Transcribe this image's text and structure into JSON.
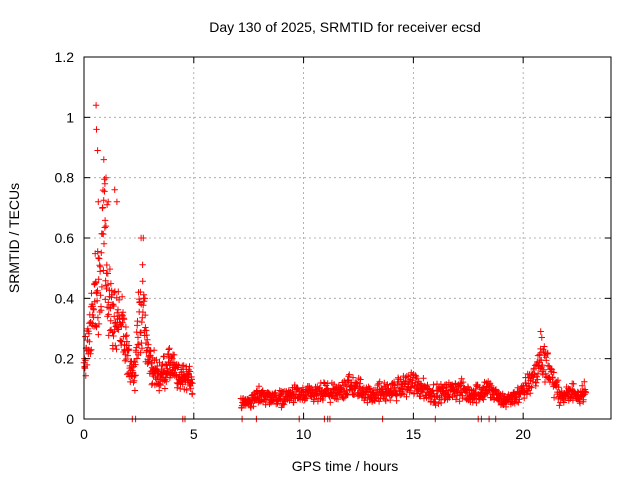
{
  "chart_data": {
    "type": "scatter",
    "title": "Day 130 of 2025, SRMTID for receiver ecsd",
    "xlabel": "GPS time / hours",
    "ylabel": "SRMTID / TECUs",
    "xlim": [
      0,
      24
    ],
    "ylim": [
      0,
      1.2
    ],
    "grid": true,
    "marker": "+",
    "color": "#ff0000",
    "xticks": [
      0,
      5,
      10,
      15,
      20
    ],
    "xtick_labels": [
      "0",
      "5",
      "10",
      "15",
      "20"
    ],
    "yticks": [
      0,
      0.2,
      0.4,
      0.6,
      0.8,
      1.0,
      1.2
    ],
    "ytick_labels": [
      "0",
      "0.2",
      "0.4",
      "0.6",
      "0.8",
      "1",
      "1.2"
    ],
    "envelope": {
      "hours": [
        0.0,
        0.3,
        0.5,
        0.7,
        0.9,
        1.1,
        1.3,
        1.5,
        1.7,
        2.0,
        2.3,
        2.5,
        2.7,
        2.9,
        3.1,
        3.4,
        3.7,
        4.0,
        4.3,
        4.6,
        4.9,
        7.2,
        7.6,
        8.0,
        8.5,
        9.0,
        9.5,
        10.0,
        10.5,
        11.0,
        11.5,
        12.0,
        12.5,
        13.0,
        13.5,
        14.0,
        14.5,
        15.0,
        15.5,
        16.0,
        16.5,
        17.0,
        17.5,
        18.0,
        18.5,
        19.0,
        19.5,
        20.0,
        20.5,
        20.8,
        21.0,
        21.3,
        21.5,
        21.8,
        22.0,
        22.3,
        22.6,
        22.8
      ],
      "srmtid": [
        0.17,
        0.3,
        0.42,
        0.45,
        0.62,
        0.42,
        0.33,
        0.35,
        0.3,
        0.2,
        0.15,
        0.33,
        0.38,
        0.22,
        0.17,
        0.14,
        0.16,
        0.18,
        0.13,
        0.15,
        0.12,
        0.05,
        0.06,
        0.08,
        0.07,
        0.07,
        0.08,
        0.08,
        0.08,
        0.09,
        0.08,
        0.11,
        0.1,
        0.08,
        0.09,
        0.09,
        0.11,
        0.12,
        0.1,
        0.08,
        0.09,
        0.1,
        0.08,
        0.09,
        0.1,
        0.06,
        0.07,
        0.09,
        0.14,
        0.19,
        0.2,
        0.14,
        0.1,
        0.07,
        0.08,
        0.09,
        0.08,
        0.1
      ]
    },
    "peaks": {
      "hours": [
        0.55,
        0.57,
        0.62,
        0.65,
        0.9,
        0.95,
        1.0,
        1.05,
        1.1,
        1.4,
        1.5,
        2.6,
        2.7,
        20.8,
        20.85
      ],
      "srmtid": [
        1.04,
        0.96,
        0.89,
        0.72,
        0.86,
        0.78,
        0.8,
        0.71,
        0.72,
        0.76,
        0.72,
        0.6,
        0.6,
        0.29,
        0.27
      ]
    },
    "zero_points_hours": [
      2.2,
      2.35,
      4.5,
      4.6,
      7.2,
      7.85,
      9.8,
      10.95,
      11.1,
      11.2,
      13.6,
      16.0,
      17.95,
      18.1,
      18.45,
      18.75
    ]
  }
}
